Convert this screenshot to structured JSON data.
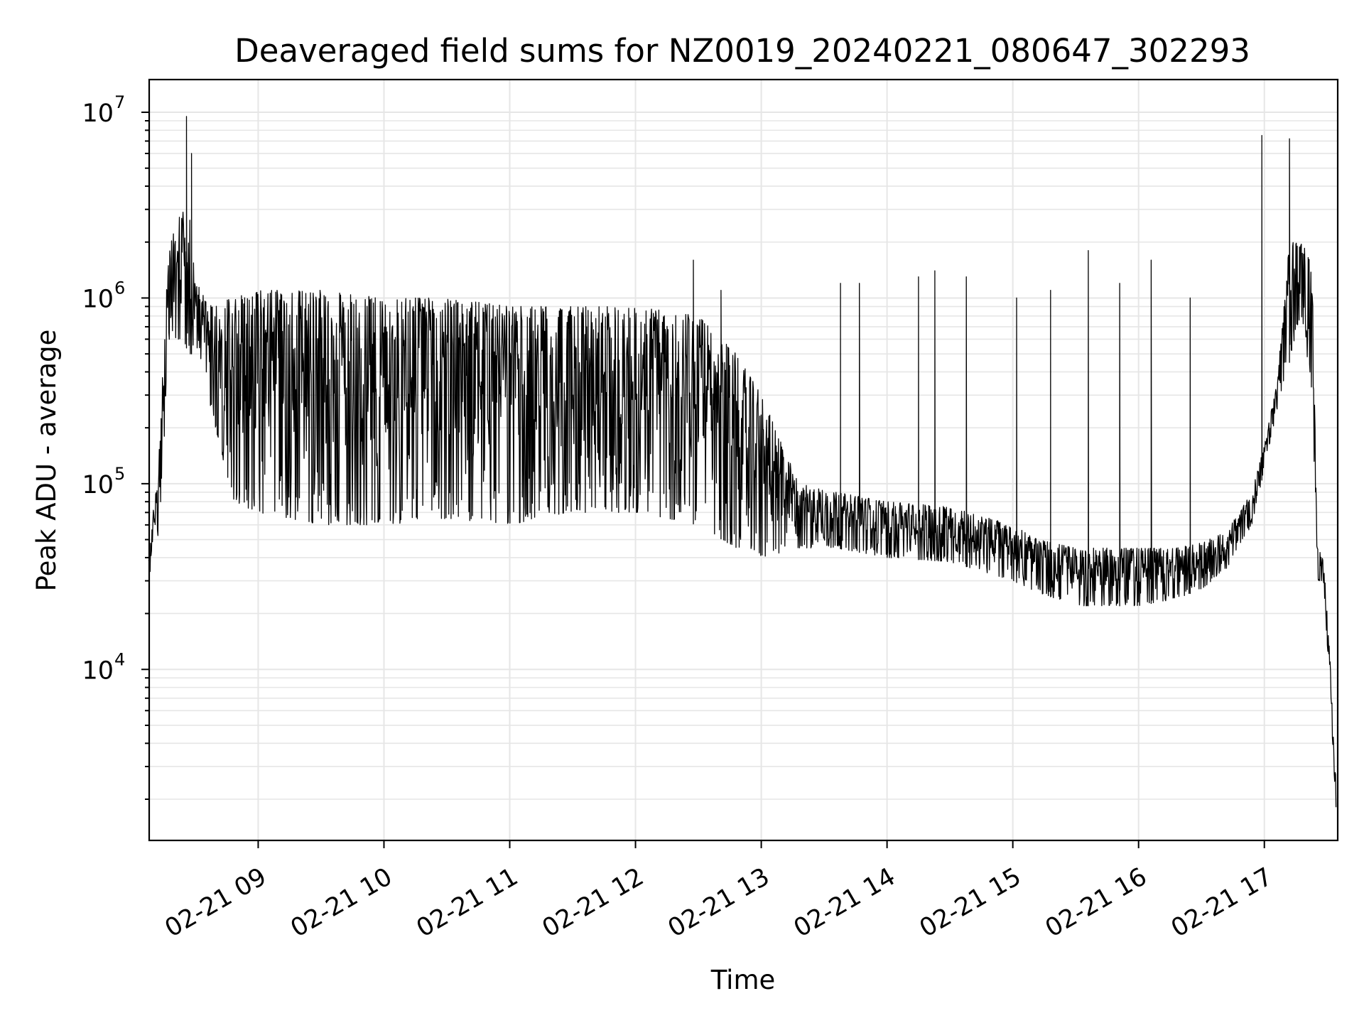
{
  "chart_data": {
    "type": "line",
    "title": "Deaveraged field sums for NZ0019_20240221_080647_302293",
    "xlabel": "Time",
    "ylabel": "Peak ADU - average",
    "yscale": "log",
    "grid": true,
    "xlim": [
      "2024-02-21 08:08",
      "2024-02-21 17:35"
    ],
    "ylim": [
      1200,
      15000000
    ],
    "xticks": [
      "02-21 09",
      "02-21 10",
      "02-21 11",
      "02-21 12",
      "02-21 13",
      "02-21 14",
      "02-21 15",
      "02-21 16",
      "02-21 17"
    ],
    "xtick_hours": [
      9,
      10,
      11,
      12,
      13,
      14,
      15,
      16,
      17
    ],
    "yticks": [
      {
        "base": "10",
        "exp": "4",
        "value": 10000
      },
      {
        "base": "10",
        "exp": "5",
        "value": 100000
      },
      {
        "base": "10",
        "exp": "6",
        "value": 1000000
      },
      {
        "base": "10",
        "exp": "7",
        "value": 10000000
      }
    ],
    "series": [
      {
        "color": "#000000",
        "envelope_hours": [
          8.13,
          8.22,
          8.28,
          8.3,
          8.35,
          8.4,
          8.45,
          8.5,
          8.6,
          8.8,
          9.0,
          9.5,
          10.0,
          10.5,
          11.0,
          11.5,
          12.0,
          12.5,
          12.8,
          13.0,
          13.3,
          13.6,
          14.0,
          14.5,
          15.0,
          15.2,
          15.5,
          15.8,
          16.0,
          16.3,
          16.5,
          16.7,
          16.9,
          17.0,
          17.1,
          17.2,
          17.3,
          17.38,
          17.42,
          17.47,
          17.52,
          17.57
        ],
        "envelope_low": [
          30000,
          60000,
          400000,
          700000,
          600000,
          600000,
          500000,
          500000,
          300000,
          80000,
          70000,
          60000,
          60000,
          65000,
          60000,
          70000,
          70000,
          60000,
          45000,
          40000,
          45000,
          45000,
          40000,
          38000,
          30000,
          26000,
          22000,
          22000,
          22000,
          24000,
          27000,
          35000,
          60000,
          120000,
          250000,
          450000,
          800000,
          300000,
          30000,
          30000,
          8000,
          1700
        ],
        "envelope_high": [
          40000,
          200000,
          1500000,
          2000000,
          2500000,
          3000000,
          3000000,
          1300000,
          900000,
          1000000,
          1100000,
          1100000,
          1000000,
          1000000,
          900000,
          900000,
          900000,
          800000,
          500000,
          300000,
          100000,
          90000,
          80000,
          75000,
          60000,
          50000,
          45000,
          45000,
          45000,
          45000,
          48000,
          55000,
          90000,
          160000,
          350000,
          2000000,
          2000000,
          1500000,
          45000,
          40000,
          12000,
          2500
        ],
        "spikes": [
          {
            "hour": 8.43,
            "value": 9500000
          },
          {
            "hour": 8.47,
            "value": 6000000
          },
          {
            "hour": 12.46,
            "value": 1600000
          },
          {
            "hour": 12.68,
            "value": 1100000
          },
          {
            "hour": 13.63,
            "value": 1200000
          },
          {
            "hour": 13.78,
            "value": 1200000
          },
          {
            "hour": 14.25,
            "value": 1300000
          },
          {
            "hour": 14.38,
            "value": 1400000
          },
          {
            "hour": 14.63,
            "value": 1300000
          },
          {
            "hour": 15.03,
            "value": 1000000
          },
          {
            "hour": 15.3,
            "value": 1100000
          },
          {
            "hour": 15.6,
            "value": 1800000
          },
          {
            "hour": 15.85,
            "value": 1200000
          },
          {
            "hour": 16.1,
            "value": 1600000
          },
          {
            "hour": 16.41,
            "value": 1000000
          },
          {
            "hour": 16.98,
            "value": 7500000
          },
          {
            "hour": 17.2,
            "value": 7200000
          }
        ]
      }
    ]
  }
}
